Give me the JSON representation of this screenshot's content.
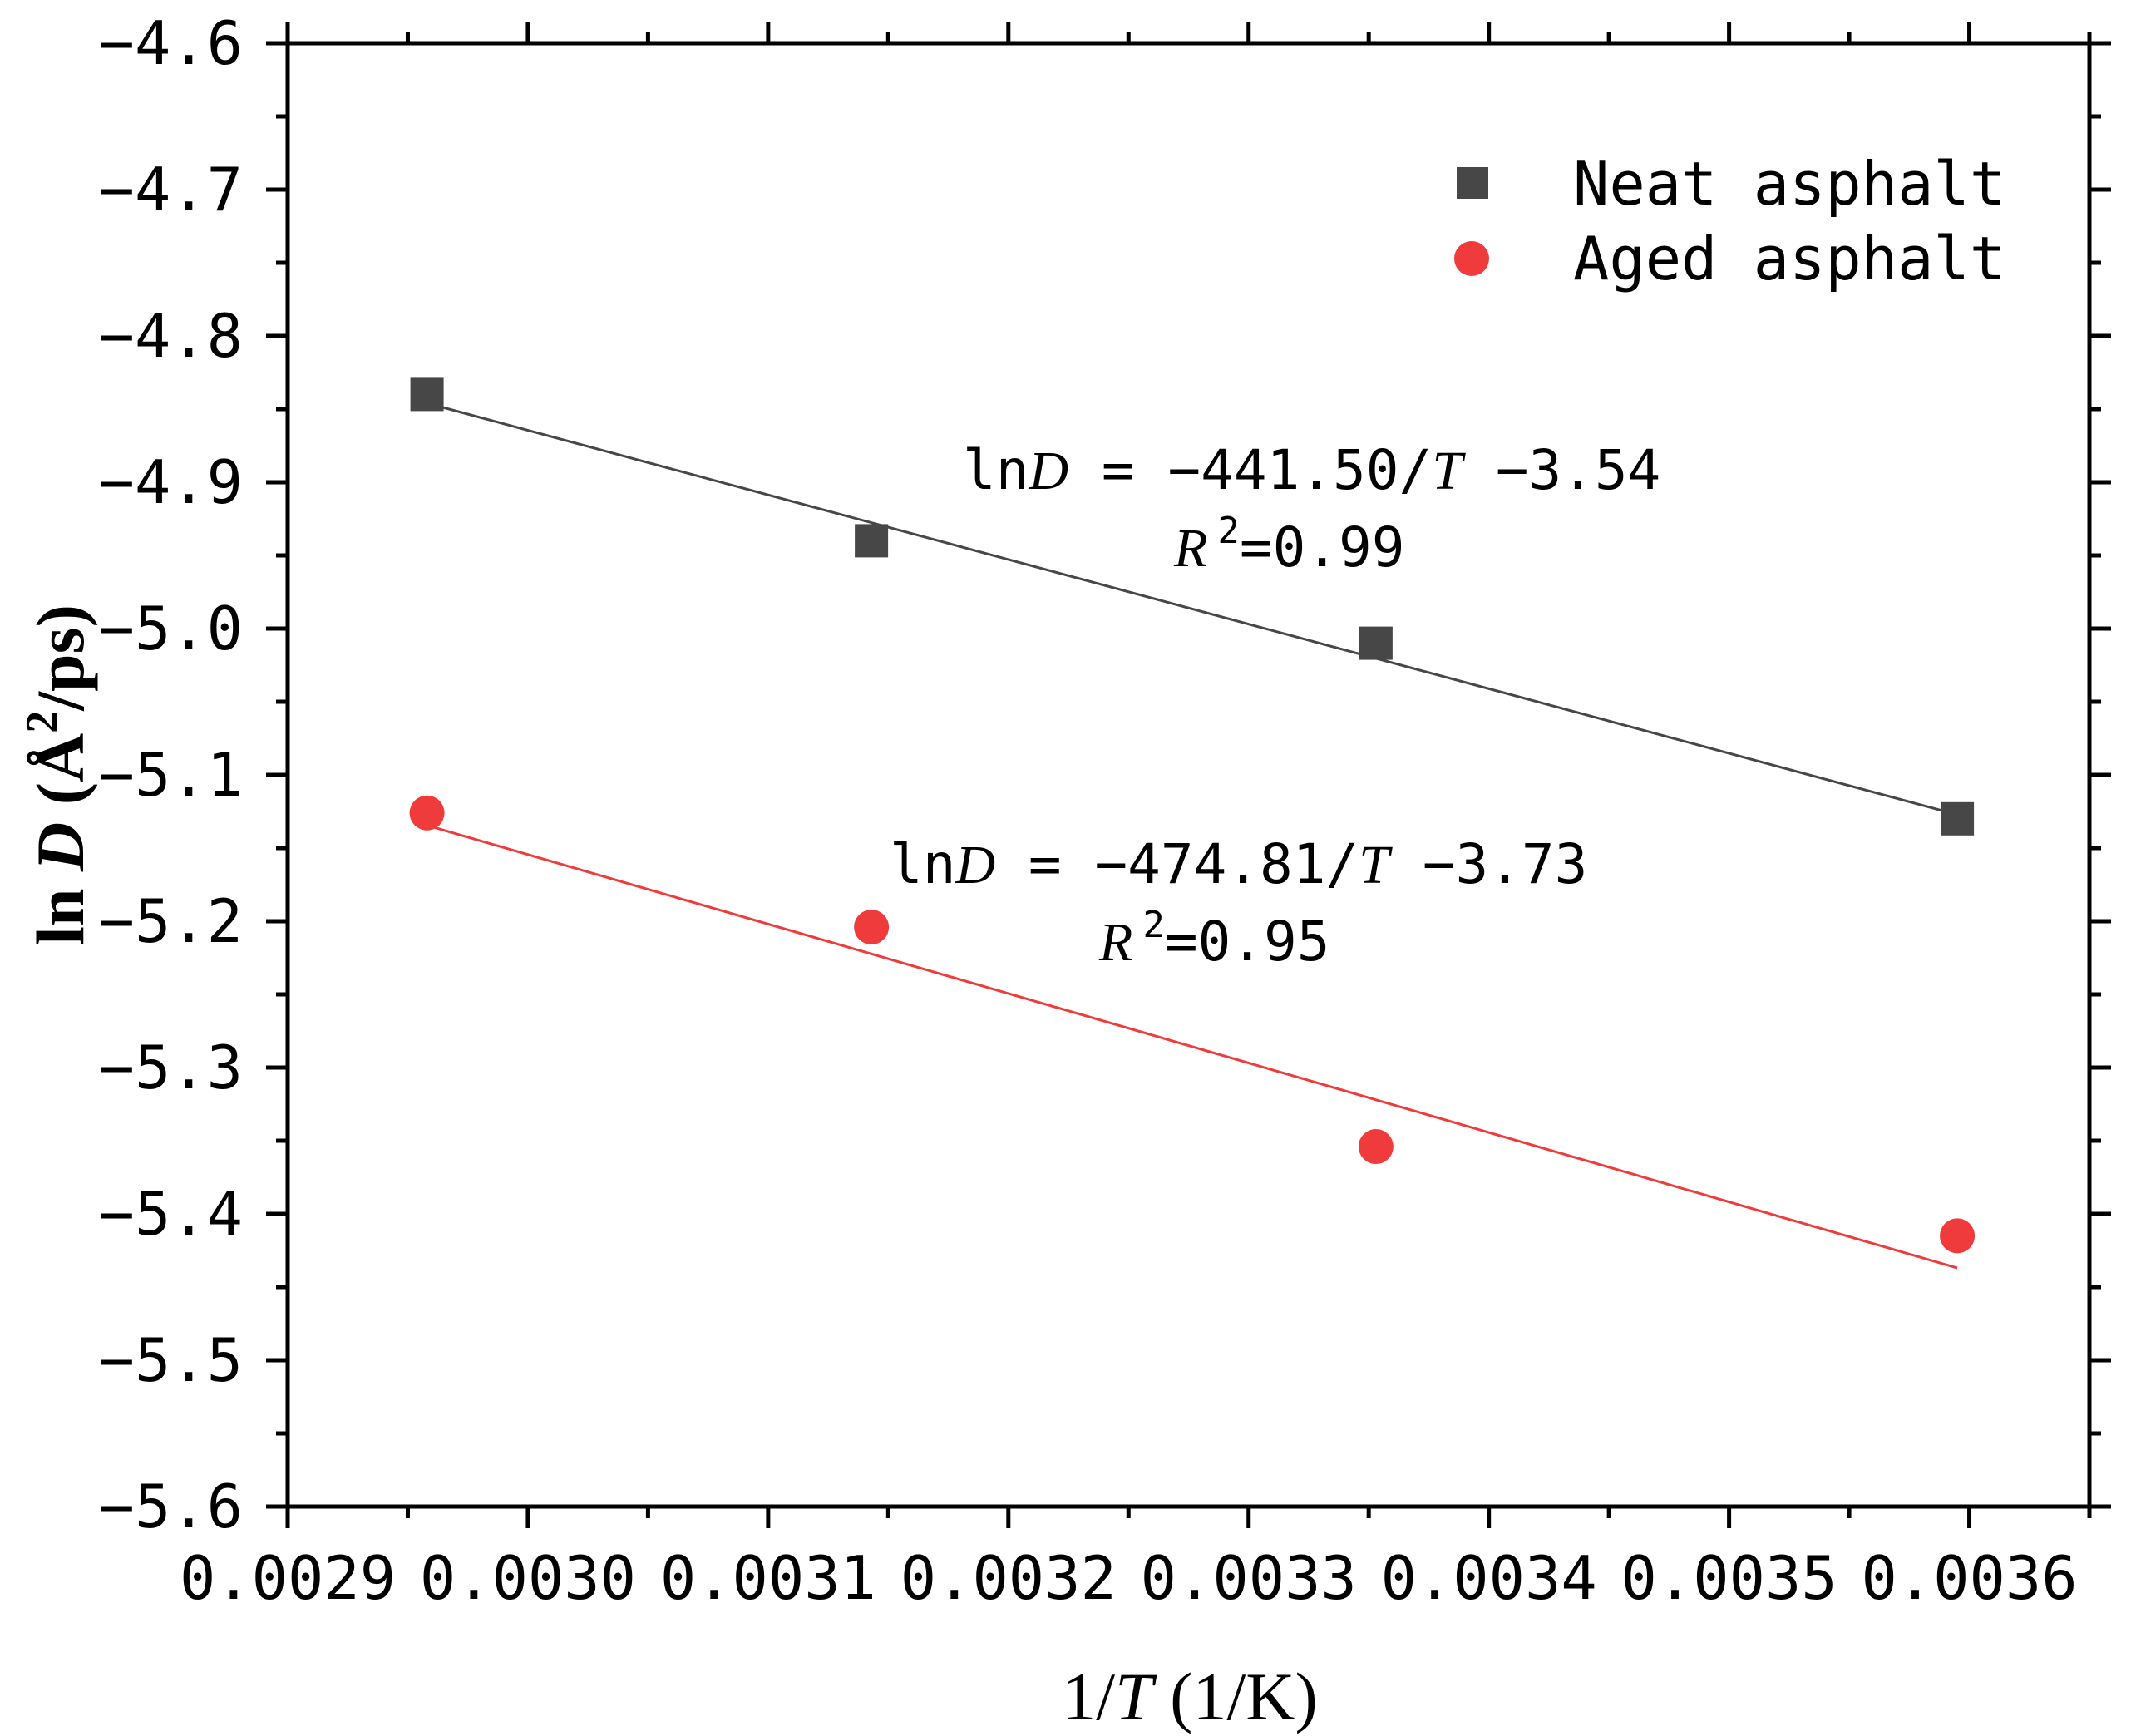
{
  "chart_data": {
    "type": "scatter",
    "xlabel": "1/T (1/K)",
    "xlabel_parts": {
      "a": "1/",
      "b": "T",
      "c": " (1/K)"
    },
    "ylabel": "ln D (Å²/ps)",
    "ylabel_parts": {
      "a": "ln ",
      "b": "D",
      "c": " (Å",
      "d": "2",
      "e": "/ps)"
    },
    "xlim": [
      0.0029,
      0.00365
    ],
    "ylim": [
      -5.6,
      -4.6
    ],
    "x_ticks": [
      0.0029,
      0.003,
      0.0031,
      0.0032,
      0.0033,
      0.0034,
      0.0035,
      0.0036
    ],
    "x_tick_labels": [
      "0.0029",
      "0.0030",
      "0.0031",
      "0.0032",
      "0.0033",
      "0.0034",
      "0.0035",
      "0.0036"
    ],
    "y_ticks": [
      -4.6,
      -4.7,
      -4.8,
      -4.9,
      -5.0,
      -5.1,
      -5.2,
      -5.3,
      -5.4,
      -5.5,
      -5.6
    ],
    "y_tick_labels": [
      "−4.6",
      "−4.7",
      "−4.8",
      "−4.9",
      "−5.0",
      "−5.1",
      "−5.2",
      "−5.3",
      "−5.4",
      "−5.5",
      "−5.6"
    ],
    "legend_position": "top-right",
    "series": [
      {
        "name": "Neat asphalt",
        "marker": "square",
        "color": "#474747",
        "x": [
          0.002958,
          0.003143,
          0.003353,
          0.003595
        ],
        "y": [
          -4.84,
          -4.94,
          -5.01,
          -5.13
        ],
        "fit": {
          "slope": -441.5,
          "intercept": -3.54,
          "x_range": [
            0.002958,
            0.003595
          ]
        },
        "equation": {
          "a": "ln",
          "b": "D",
          "c": " = −441.50/",
          "d": "T",
          "e": " −3.54"
        },
        "r2": {
          "a": "R",
          "b": "2",
          "c": "=0.99"
        }
      },
      {
        "name": "Aged asphalt",
        "marker": "circle",
        "color": "#ef3b3b",
        "x": [
          0.002958,
          0.003143,
          0.003353,
          0.003595
        ],
        "y": [
          -5.126,
          -5.204,
          -5.354,
          -5.415
        ],
        "fit": {
          "slope": -474.81,
          "intercept": -3.73,
          "x_range": [
            0.002958,
            0.003595
          ]
        },
        "equation": {
          "a": "ln",
          "b": "D",
          "c": " = −474.81/",
          "d": "T",
          "e": " −3.73"
        },
        "r2": {
          "a": "R",
          "b": "2",
          "c": "=0.95"
        }
      }
    ]
  }
}
